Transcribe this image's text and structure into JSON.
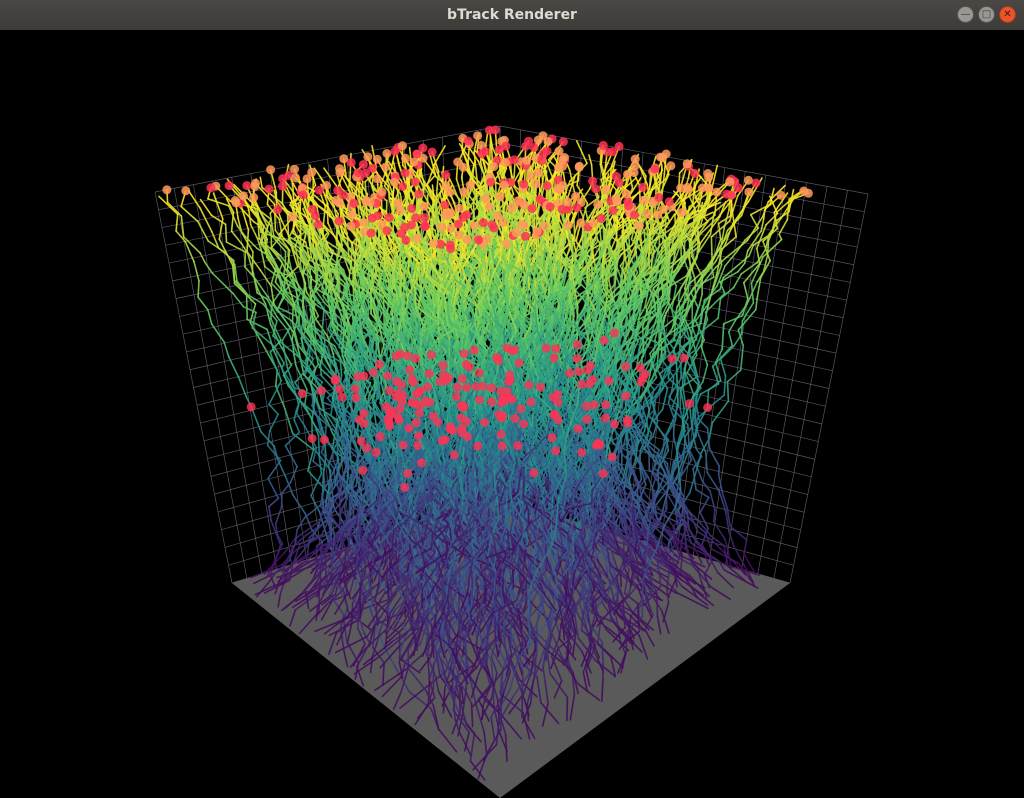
{
  "window": {
    "title": "bTrack Renderer",
    "controls": [
      {
        "name": "minimize",
        "glyph": "—"
      },
      {
        "name": "maximize",
        "glyph": "□"
      },
      {
        "name": "close",
        "glyph": "✕"
      }
    ]
  },
  "scene": {
    "colormap": [
      "#440154",
      "#3b528b",
      "#21918c",
      "#5ec962",
      "#fde725"
    ],
    "marker_color": "#ff3355",
    "floor_color": "#5a5a5a",
    "grid_color": "#6a6a7a"
  }
}
